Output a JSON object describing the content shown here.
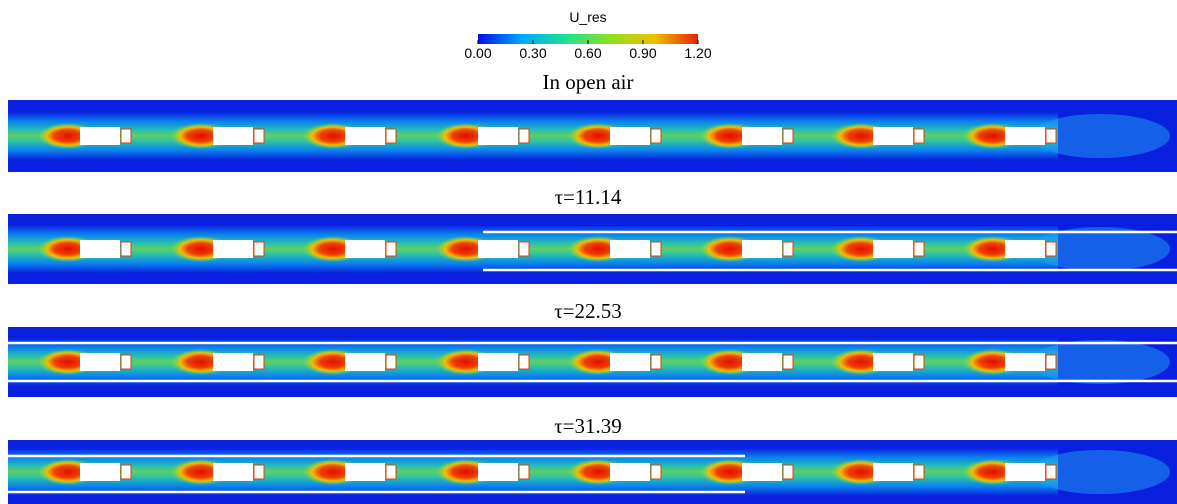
{
  "colorbar": {
    "title": "U_res",
    "lim": [
      0,
      1.2
    ],
    "ticks": [
      {
        "value": 0,
        "label": "0.00"
      },
      {
        "value": 0.3,
        "label": "0.30"
      },
      {
        "value": 0.6,
        "label": "0.60"
      },
      {
        "value": 0.9,
        "label": "0.90"
      },
      {
        "value": 1.2,
        "label": "1.20"
      }
    ],
    "colors": [
      "#0010e8",
      "#00a8ff",
      "#20e090",
      "#8ce020",
      "#f0c000",
      "#e82000"
    ]
  },
  "panels": [
    {
      "title": "In open air"
    },
    {
      "title": "τ=11.14"
    },
    {
      "title": "τ=22.53"
    },
    {
      "title": "τ=31.39"
    }
  ]
}
